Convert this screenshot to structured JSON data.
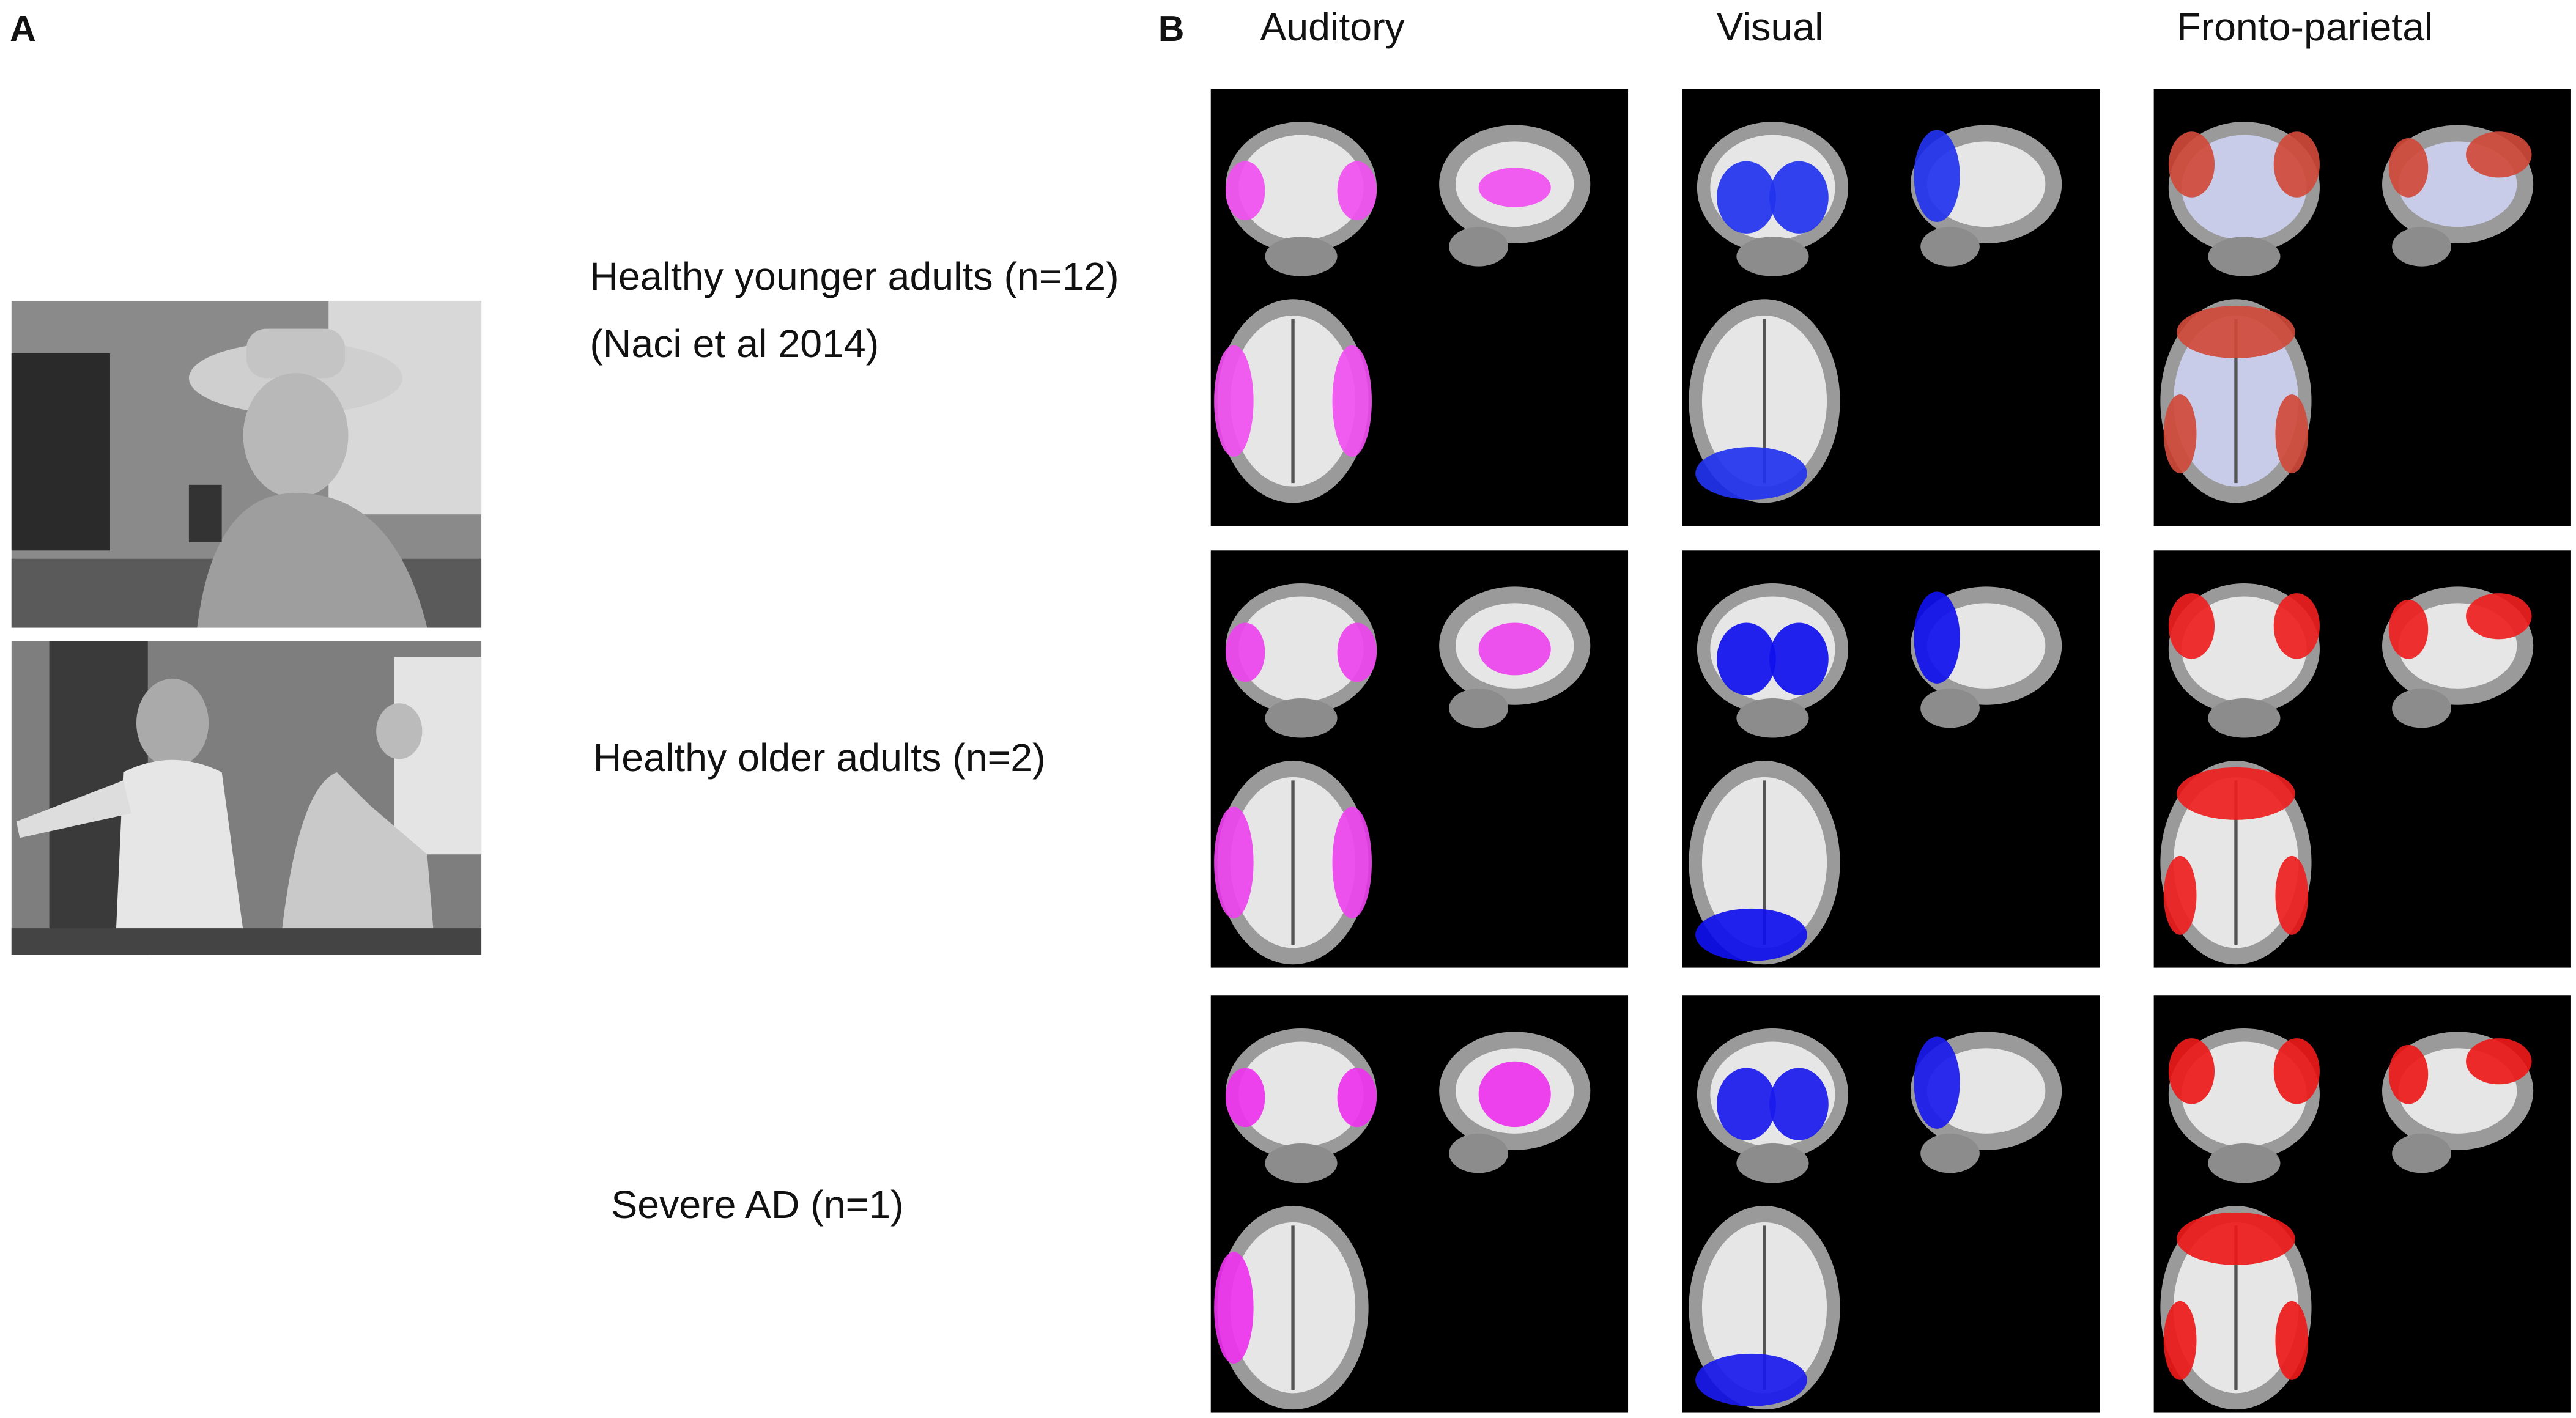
{
  "panels": {
    "a": {
      "label": "A"
    },
    "b": {
      "label": "B"
    }
  },
  "columns": [
    "Auditory",
    "Visual",
    "Fronto-parietal"
  ],
  "rows": [
    {
      "lines": [
        "Healthy younger adults (n=12)",
        "(Naci et al 2014)"
      ]
    },
    {
      "lines": [
        "Healthy older adults (n=2)"
      ]
    },
    {
      "lines": [
        "Severe AD (n=1)"
      ]
    }
  ]
}
